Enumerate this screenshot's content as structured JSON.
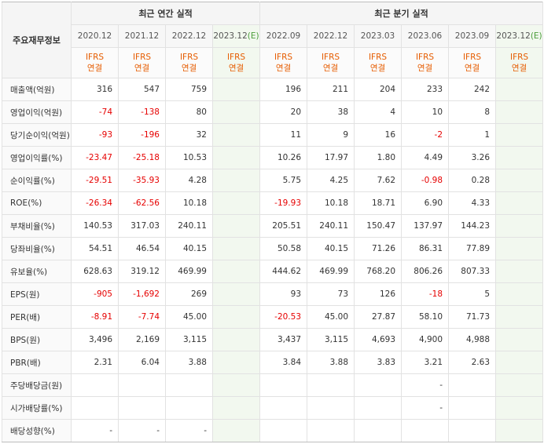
{
  "header": {
    "row_label_title": "주요재무정보",
    "annual_group": "최근 연간 실적",
    "quarterly_group": "최근 분기 실적",
    "annual_periods": [
      "2020.12",
      "2021.12",
      "2022.12",
      "2023.12"
    ],
    "quarterly_periods": [
      "2022.09",
      "2022.12",
      "2023.03",
      "2023.06",
      "2023.09",
      "2023.12"
    ],
    "estimate_mark": "(E)",
    "basis_line1": "IFRS",
    "basis_line2": "연결"
  },
  "rows": [
    {
      "label": "매출액(억원)",
      "values": [
        "316",
        "547",
        "759",
        "",
        "196",
        "211",
        "204",
        "233",
        "242",
        ""
      ]
    },
    {
      "label": "영업이익(억원)",
      "values": [
        "-74",
        "-138",
        "80",
        "",
        "20",
        "38",
        "4",
        "10",
        "8",
        ""
      ]
    },
    {
      "label": "당기순이익(억원)",
      "values": [
        "-93",
        "-196",
        "32",
        "",
        "11",
        "9",
        "16",
        "-2",
        "1",
        ""
      ]
    },
    {
      "label": "영업이익률(%)",
      "values": [
        "-23.47",
        "-25.18",
        "10.53",
        "",
        "10.26",
        "17.97",
        "1.80",
        "4.49",
        "3.26",
        ""
      ]
    },
    {
      "label": "순이익률(%)",
      "values": [
        "-29.51",
        "-35.93",
        "4.28",
        "",
        "5.75",
        "4.25",
        "7.62",
        "-0.98",
        "0.28",
        ""
      ]
    },
    {
      "label": "ROE(%)",
      "values": [
        "-26.34",
        "-62.56",
        "10.18",
        "",
        "-19.93",
        "10.18",
        "18.71",
        "6.90",
        "4.33",
        ""
      ]
    },
    {
      "label": "부채비율(%)",
      "values": [
        "140.53",
        "317.03",
        "240.11",
        "",
        "205.51",
        "240.11",
        "150.47",
        "137.97",
        "144.23",
        ""
      ]
    },
    {
      "label": "당좌비율(%)",
      "values": [
        "54.51",
        "46.54",
        "40.15",
        "",
        "50.58",
        "40.15",
        "71.26",
        "86.31",
        "77.89",
        ""
      ]
    },
    {
      "label": "유보율(%)",
      "values": [
        "628.63",
        "319.12",
        "469.99",
        "",
        "444.62",
        "469.99",
        "768.20",
        "806.26",
        "807.33",
        ""
      ]
    },
    {
      "label": "EPS(원)",
      "values": [
        "-905",
        "-1,692",
        "269",
        "",
        "93",
        "73",
        "126",
        "-18",
        "5",
        ""
      ]
    },
    {
      "label": "PER(배)",
      "values": [
        "-8.91",
        "-7.74",
        "45.00",
        "",
        "-20.53",
        "45.00",
        "27.87",
        "58.10",
        "71.73",
        ""
      ]
    },
    {
      "label": "BPS(원)",
      "values": [
        "3,496",
        "2,169",
        "3,115",
        "",
        "3,437",
        "3,115",
        "4,693",
        "4,900",
        "4,988",
        ""
      ]
    },
    {
      "label": "PBR(배)",
      "values": [
        "2.31",
        "6.04",
        "3.88",
        "",
        "3.84",
        "3.88",
        "3.83",
        "3.21",
        "2.63",
        ""
      ]
    },
    {
      "label": "주당배당금(원)",
      "values": [
        "",
        "",
        "",
        "",
        "",
        "",
        "",
        "-",
        "",
        ""
      ]
    },
    {
      "label": "시가배당률(%)",
      "values": [
        "",
        "",
        "",
        "",
        "",
        "",
        "",
        "-",
        "",
        ""
      ]
    },
    {
      "label": "배당성향(%)",
      "values": [
        "-",
        "-",
        "-",
        "",
        "",
        "",
        "",
        "",
        "",
        ""
      ]
    }
  ],
  "colors": {
    "negative": "#e60000",
    "ifrs": "#e65c00",
    "estimate_bg": "#f2f8ef",
    "estimate_mark": "#4a9d3a"
  }
}
